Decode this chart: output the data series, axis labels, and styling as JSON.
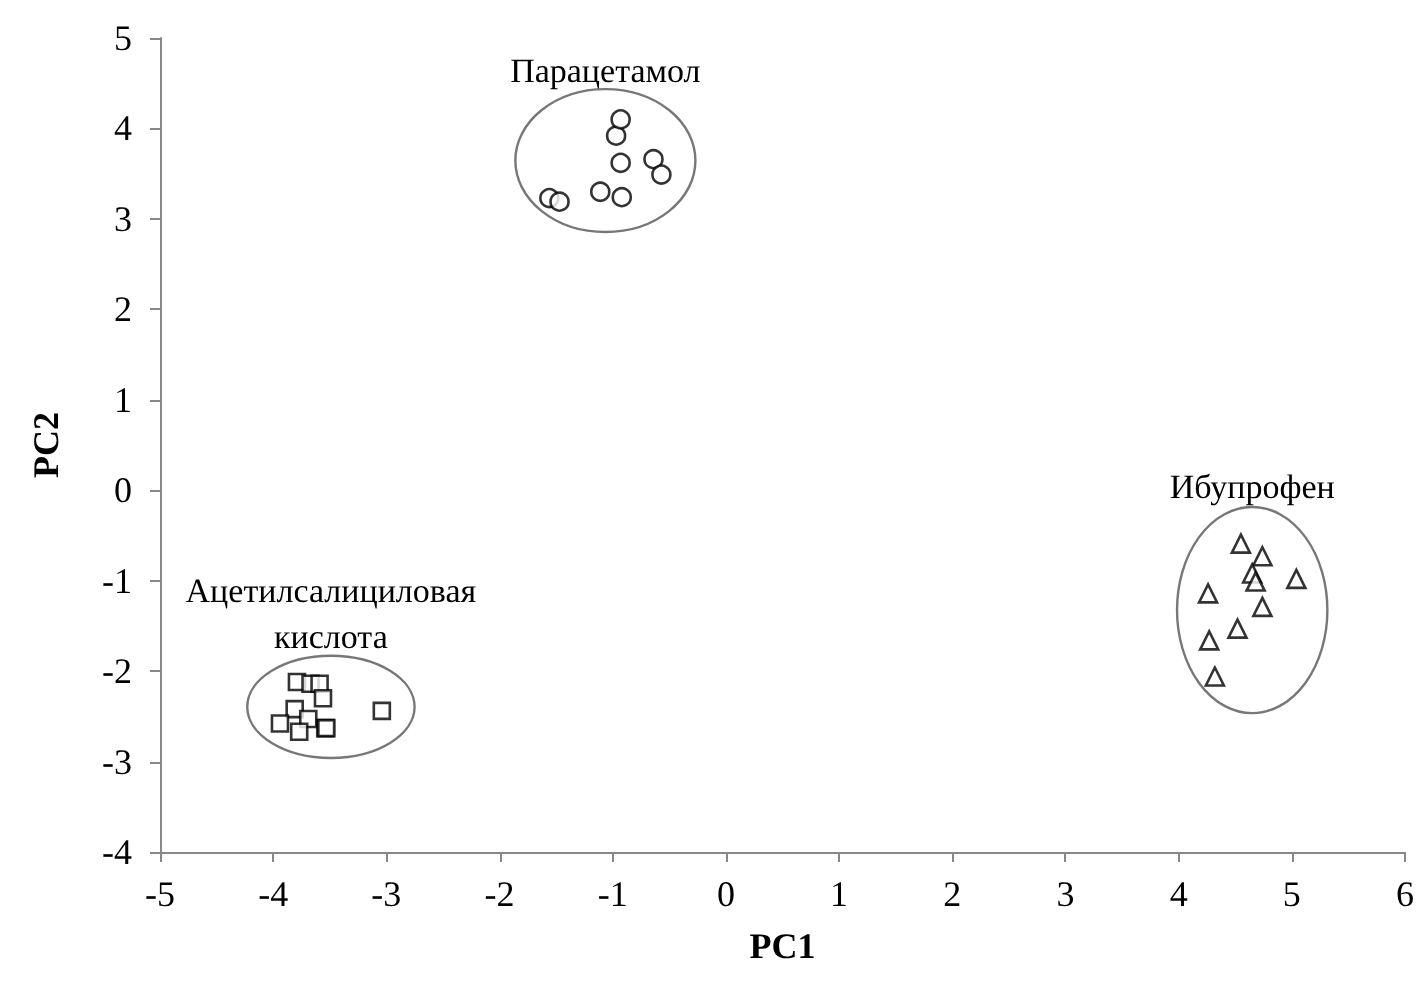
{
  "chart_data": {
    "type": "scatter",
    "xlabel": "PC1",
    "ylabel": "PC2",
    "xlim": [
      -5,
      6
    ],
    "xticks": [
      -5,
      -4,
      -3,
      -2,
      -1,
      0,
      1,
      2,
      3,
      4,
      5,
      6
    ],
    "ylim": [
      -4,
      5
    ],
    "yticks": [
      -4,
      -3,
      -2,
      -1,
      0,
      1,
      2,
      3,
      4,
      5
    ],
    "grid": false,
    "legend": false,
    "series": [
      {
        "name": "Парацетамол",
        "color": "#000000",
        "marker": "circle",
        "x": [
          -1.56,
          -1.47,
          -1.11,
          -0.92,
          -0.93,
          -0.97,
          -0.93,
          -0.64,
          -0.57
        ],
        "values": [
          3.23,
          3.19,
          3.3,
          3.24,
          3.62,
          3.92,
          4.1,
          3.66,
          3.49
        ]
      },
      {
        "name": "Ибупрофен",
        "color": "#000000",
        "marker": "triangle",
        "x": [
          4.55,
          4.74,
          4.65,
          4.68,
          5.04,
          4.26,
          4.74,
          4.52,
          4.27,
          4.32
        ],
        "values": [
          -0.59,
          -0.73,
          -0.92,
          -1.01,
          -0.98,
          -1.14,
          -1.29,
          -1.53,
          -1.66,
          -2.06
        ]
      },
      {
        "name": "Ацетилсалициловая кислота",
        "color": "#000000",
        "marker": "square",
        "x": [
          -3.79,
          -3.67,
          -3.59,
          -3.56,
          -3.81,
          -3.94,
          -3.69,
          -3.77,
          -3.54,
          -3.53,
          -3.04
        ],
        "values": [
          -2.12,
          -2.14,
          -2.14,
          -2.3,
          -2.42,
          -2.58,
          -2.53,
          -2.67,
          -2.63,
          -2.63,
          -2.44
        ]
      }
    ]
  }
}
